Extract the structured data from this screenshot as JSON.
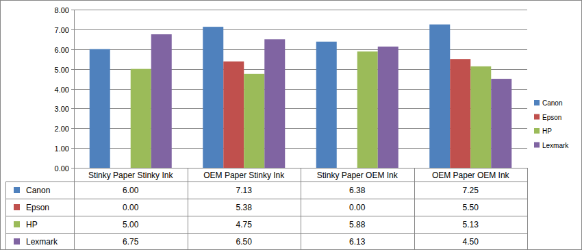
{
  "chart_data": {
    "type": "bar",
    "categories": [
      "Stinky Paper Stinky Ink",
      "OEM Paper Stinky Ink",
      "Stinky Paper OEM Ink",
      "OEM Paper OEM Ink"
    ],
    "series": [
      {
        "name": "Canon",
        "color": "#4f81bd",
        "values": [
          6.0,
          7.13,
          6.38,
          7.25
        ],
        "value_labels": [
          "6.00",
          "7.13",
          "6.38",
          "7.25"
        ]
      },
      {
        "name": "Epson",
        "color": "#c0504d",
        "values": [
          0.0,
          5.38,
          0.0,
          5.5
        ],
        "value_labels": [
          "0.00",
          "5.38",
          "0.00",
          "5.50"
        ]
      },
      {
        "name": "HP",
        "color": "#9bbb59",
        "values": [
          5.0,
          4.75,
          5.88,
          5.13
        ],
        "value_labels": [
          "5.00",
          "4.75",
          "5.88",
          "5.13"
        ]
      },
      {
        "name": "Lexmark",
        "color": "#8064a2",
        "values": [
          6.75,
          6.5,
          6.13,
          4.5
        ],
        "value_labels": [
          "6.75",
          "6.50",
          "6.13",
          "4.50"
        ]
      }
    ],
    "ylim": [
      0,
      8
    ],
    "yticks": [
      {
        "value": 0,
        "label": "0.00"
      },
      {
        "value": 1,
        "label": "1.00"
      },
      {
        "value": 2,
        "label": "2.00"
      },
      {
        "value": 3,
        "label": "3.00"
      },
      {
        "value": 4,
        "label": "4.00"
      },
      {
        "value": 5,
        "label": "5.00"
      },
      {
        "value": 6,
        "label": "6.00"
      },
      {
        "value": 7,
        "label": "7.00"
      },
      {
        "value": 8,
        "label": "8.00"
      }
    ],
    "grid": true,
    "legend": "right"
  }
}
